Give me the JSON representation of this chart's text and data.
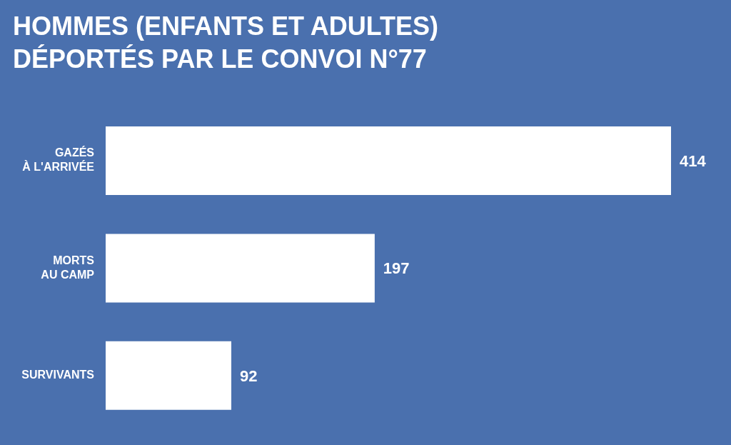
{
  "chart_data": {
    "type": "bar",
    "orientation": "horizontal",
    "title": "HOMMES (ENFANTS ET ADULTES)",
    "subtitle": "DÉPORTÉS PAR LE CONVOI N°77",
    "categories": [
      "GAZÉS À L'ARRIVÉE",
      "MORTS AU CAMP",
      "SURVIVANTS"
    ],
    "values": [
      414,
      197,
      92
    ],
    "color": "#ffffff",
    "data_labels": true
  }
}
